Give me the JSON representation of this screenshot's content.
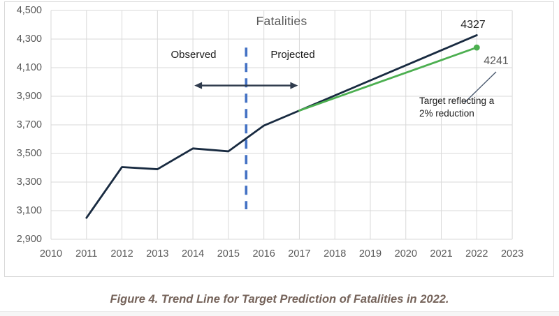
{
  "page": {
    "caption": "Figure 4. Trend Line for Target Prediction of Fatalities in 2022.",
    "caption_color": "#75635a"
  },
  "chart_data": {
    "type": "line",
    "title": "Fatalities",
    "title_color": "#595959",
    "x_ticks": [
      "2010",
      "2011",
      "2012",
      "2013",
      "2014",
      "2015",
      "2016",
      "2017",
      "2018",
      "2019",
      "2020",
      "2021",
      "2022",
      "2023"
    ],
    "y_ticks": [
      "2,900",
      "3,100",
      "3,300",
      "3,500",
      "3,700",
      "3,900",
      "4,100",
      "4,300",
      "4,500"
    ],
    "axis": {
      "x_min": 2010,
      "x_max": 2023,
      "y_min": 2900,
      "y_max": 4500,
      "y_step": 200,
      "grid": true,
      "grid_color": "#d9d9d9",
      "tick_color": "#595959"
    },
    "series": [
      {
        "name": "fatalities-trend",
        "color": "#182a40",
        "width": 2.8,
        "points": [
          [
            2011,
            3050
          ],
          [
            2012,
            3405
          ],
          [
            2013,
            3390
          ],
          [
            2014,
            3535
          ],
          [
            2015,
            3515
          ],
          [
            2016,
            3695
          ],
          [
            2017,
            3800
          ],
          [
            2022,
            4327
          ]
        ]
      },
      {
        "name": "target-reduction-line",
        "color": "#4caf50",
        "width": 2.8,
        "end_dot": true,
        "end_dot_radius": 4.4,
        "points": [
          [
            2017,
            3800
          ],
          [
            2022,
            4241
          ]
        ]
      }
    ],
    "divider": {
      "x": 2015.5,
      "y_from": 3110,
      "y_to": 4240,
      "color": "#4472c4",
      "label_left": "Observed",
      "label_right": "Projected"
    },
    "arrow": {
      "x_from": 2014,
      "x_to": 2017,
      "y": 3975,
      "color": "#2f3b4d"
    },
    "labels": {
      "trend_end_value": "4327",
      "target_end_value": "4241",
      "target_note": "Target reflecting a 2% reduction"
    }
  }
}
